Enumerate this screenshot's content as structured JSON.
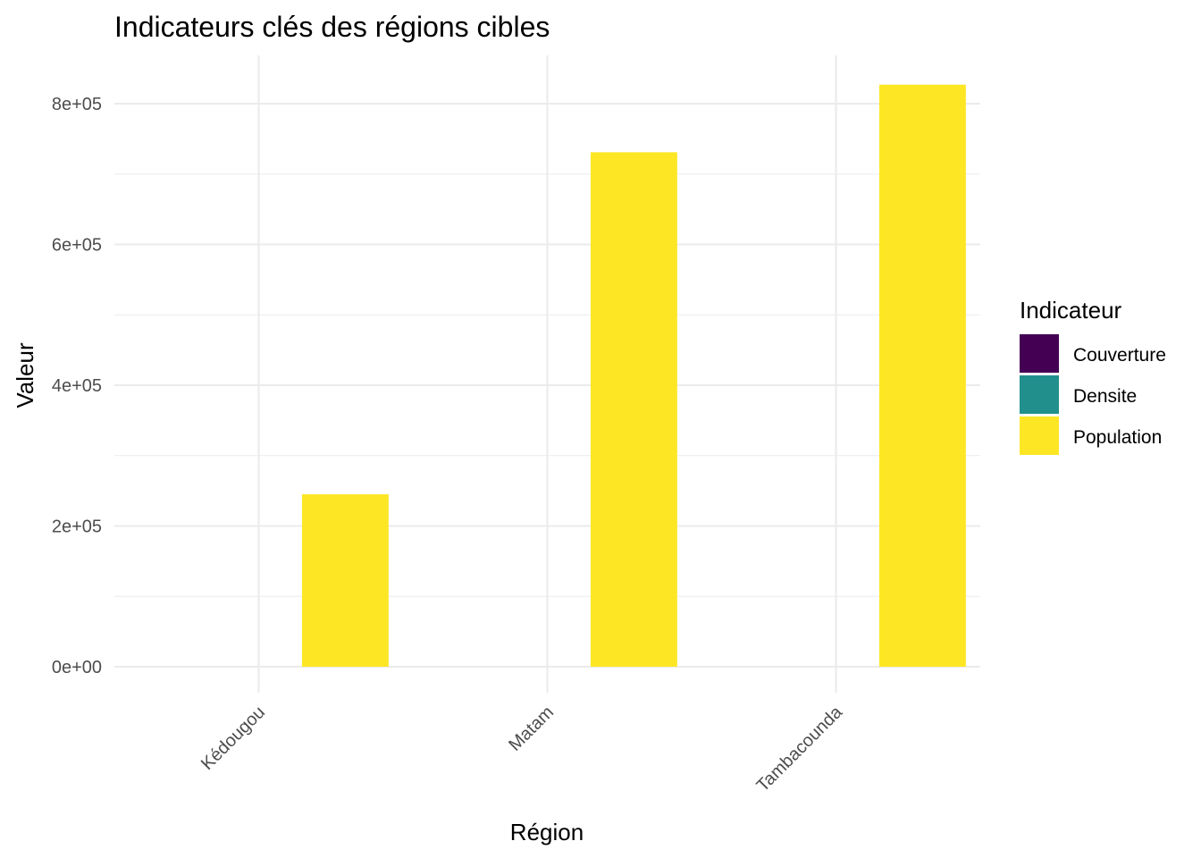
{
  "chart_data": {
    "type": "bar",
    "title": "Indicateurs clés des régions cibles",
    "xlabel": "Région",
    "ylabel": "Valeur",
    "categories": [
      "Kédougou",
      "Matam",
      "Tambacounda"
    ],
    "series": [
      {
        "name": "Couverture",
        "color": "#440154",
        "values": [
          0,
          0,
          0
        ]
      },
      {
        "name": "Densite",
        "color": "#21908C",
        "values": [
          0,
          0,
          0
        ]
      },
      {
        "name": "Population",
        "color": "#FDE725",
        "values": [
          245000,
          731000,
          827000
        ]
      }
    ],
    "ylim": [
      0,
      800000
    ],
    "y_ticks": [
      0,
      200000,
      400000,
      600000,
      800000
    ],
    "y_tick_labels": [
      "0e+00",
      "2e+05",
      "4e+05",
      "6e+05",
      "8e+05"
    ],
    "legend": {
      "title": "Indicateur",
      "placement": "right"
    },
    "grid": true
  }
}
